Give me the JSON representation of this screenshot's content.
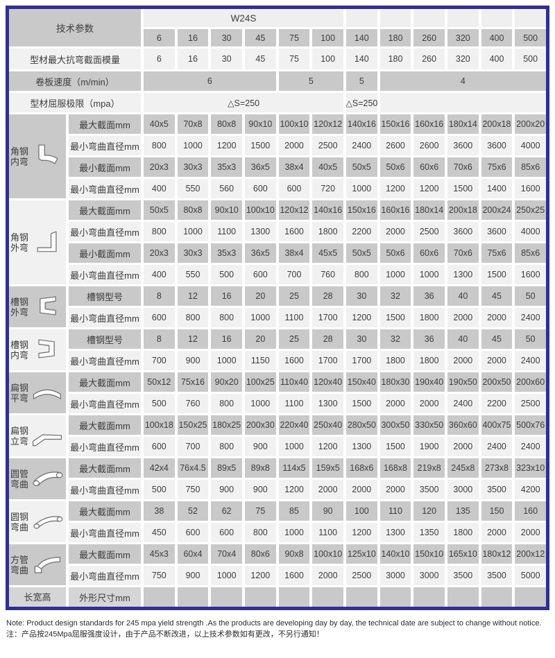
{
  "colors": {
    "frame_border": "#2f2f94",
    "cell_gray": "#c9c9c9",
    "row_light": "#f1f1f1",
    "header_light": "#efefef",
    "label_mid": "#d5d5d5"
  },
  "header": {
    "param_label": "技术参数",
    "model": "W24S",
    "columns": [
      "6",
      "16",
      "30",
      "45",
      "75",
      "100",
      "140",
      "180",
      "260",
      "320",
      "400",
      "500"
    ]
  },
  "spec_rows": [
    {
      "label": "型材最大抗弯截面模量",
      "shade": "light",
      "cells": [
        {
          "text": "6",
          "span": 1
        },
        {
          "text": "16",
          "span": 1
        },
        {
          "text": "30",
          "span": 1
        },
        {
          "text": "45",
          "span": 1
        },
        {
          "text": "75",
          "span": 1
        },
        {
          "text": "100",
          "span": 1
        },
        {
          "text": "140",
          "span": 1
        },
        {
          "text": "180",
          "span": 1
        },
        {
          "text": "260",
          "span": 1
        },
        {
          "text": "320",
          "span": 1
        },
        {
          "text": "400",
          "span": 1
        },
        {
          "text": "500",
          "span": 1
        }
      ]
    },
    {
      "label": "卷板速度（m/min）",
      "shade": "gray",
      "cells": [
        {
          "text": "6",
          "span": 4
        },
        {
          "text": "5",
          "span": 2
        },
        {
          "text": "5",
          "span": 1
        },
        {
          "text": "4",
          "span": 5
        }
      ]
    },
    {
      "label": "型材屈服极限（mpa）",
      "shade": "light",
      "cells": [
        {
          "text": "△S=250",
          "span": 6
        },
        {
          "text": "△S=250",
          "span": 1
        },
        {
          "text": "",
          "span": 5
        }
      ]
    }
  ],
  "groups": [
    {
      "name": "角钢\n内弯",
      "icon": "angle-steel-inner-bend",
      "rows": [
        {
          "label": "最大截面mm",
          "values": [
            "40x5",
            "70x8",
            "80x8",
            "90x10",
            "100x10",
            "120x12",
            "140x16",
            "150x16",
            "160x16",
            "180x14",
            "200x18",
            "200x20"
          ]
        },
        {
          "label": "最小弯曲直径mm",
          "values": [
            "800",
            "1000",
            "1200",
            "1500",
            "2000",
            "2500",
            "2400",
            "2600",
            "2600",
            "3600",
            "3600",
            "4000"
          ]
        },
        {
          "label": "最小截面mm",
          "values": [
            "20x3",
            "30x3",
            "35x3",
            "36x5",
            "38x4",
            "40x5",
            "50x5",
            "50x6",
            "60x6",
            "70x6",
            "75x6",
            "85x6"
          ]
        },
        {
          "label": "最小弯曲直径mm",
          "values": [
            "400",
            "550",
            "560",
            "600",
            "600",
            "720",
            "1000",
            "1200",
            "1200",
            "1500",
            "1400",
            "1600"
          ]
        }
      ]
    },
    {
      "name": "角钢\n外弯",
      "icon": "angle-steel-outer-bend",
      "rows": [
        {
          "label": "最大截面mm",
          "values": [
            "50x5",
            "80x8",
            "90x10",
            "100x10",
            "120x12",
            "140x16",
            "150x16",
            "160x16",
            "180x14",
            "200x18",
            "200x24",
            "250x25"
          ]
        },
        {
          "label": "最小弯曲直径mm",
          "values": [
            "800",
            "1000",
            "1100",
            "1300",
            "1600",
            "1800",
            "2200",
            "2000",
            "2500",
            "3600",
            "3600",
            "4000"
          ]
        },
        {
          "label": "最小截面mm",
          "values": [
            "20x3",
            "30x3",
            "35x3",
            "36x5",
            "38x4",
            "45x5",
            "50x5",
            "50x6",
            "60x6",
            "70x6",
            "75x6",
            "85x6"
          ]
        },
        {
          "label": "最小弯曲直径mm",
          "values": [
            "400",
            "550",
            "500",
            "600",
            "700",
            "760",
            "800",
            "1000",
            "1000",
            "1300",
            "1500",
            "1600"
          ]
        }
      ]
    },
    {
      "name": "槽钢\n外弯",
      "icon": "channel-steel-outer-bend",
      "rows": [
        {
          "label": "槽钢型号",
          "values": [
            "8",
            "12",
            "16",
            "20",
            "25",
            "28",
            "30",
            "32",
            "36",
            "40",
            "45",
            "50"
          ]
        },
        {
          "label": "最小弯曲直径mm",
          "values": [
            "600",
            "800",
            "800",
            "1000",
            "1100",
            "1700",
            "1200",
            "1500",
            "1800",
            "2000",
            "2000",
            "2400"
          ]
        }
      ]
    },
    {
      "name": "槽钢\n内弯",
      "icon": "channel-steel-inner-bend",
      "rows": [
        {
          "label": "槽钢型号",
          "values": [
            "8",
            "12",
            "16",
            "20",
            "25",
            "28",
            "30",
            "32",
            "36",
            "40",
            "45",
            "50"
          ]
        },
        {
          "label": "最小弯曲直径mm",
          "values": [
            "700",
            "900",
            "1000",
            "1150",
            "1600",
            "1700",
            "1700",
            "1800",
            "1800",
            "2000",
            "2000",
            "2400"
          ]
        }
      ]
    },
    {
      "name": "扁钢\n平弯",
      "icon": "flat-steel-flatwise-bend",
      "rows": [
        {
          "label": "最大截面mm",
          "values": [
            "50x12",
            "75x16",
            "90x20",
            "100x25",
            "110x40",
            "120x40",
            "150x40",
            "180x30",
            "190x40",
            "190x50",
            "200x50",
            "200x60"
          ]
        },
        {
          "label": "最小弯曲直径mm",
          "values": [
            "500",
            "760",
            "800",
            "1000",
            "1100",
            "1300",
            "1500",
            "2000",
            "2000",
            "2400",
            "2200",
            "2500"
          ]
        }
      ]
    },
    {
      "name": "扁钢\n立弯",
      "icon": "flat-steel-edgewise-bend",
      "rows": [
        {
          "label": "最大截面mm",
          "values": [
            "100x18",
            "150x25",
            "180x25",
            "200x30",
            "220x40",
            "250x40",
            "280x50",
            "300x50",
            "330x50",
            "360x60",
            "400x75",
            "500x76"
          ]
        },
        {
          "label": "最小弯曲直径mm",
          "values": [
            "600",
            "700",
            "800",
            "900",
            "1000",
            "1200",
            "1300",
            "1500",
            "1900",
            "2000",
            "2400",
            "2400"
          ]
        }
      ]
    },
    {
      "name": "圆管\n弯曲",
      "icon": "round-pipe-bend",
      "rows": [
        {
          "label": "最大截面mm",
          "values": [
            "42x4",
            "76x4.5",
            "89x5",
            "89x8",
            "114x5",
            "159x5",
            "168x6",
            "168x8",
            "219x8",
            "245x8",
            "273x8",
            "323x10"
          ]
        },
        {
          "label": "最小弯曲直径mm",
          "values": [
            "500",
            "750",
            "900",
            "900",
            "1200",
            "2000",
            "2000",
            "2000",
            "3500",
            "3000",
            "3500",
            "4200"
          ]
        }
      ]
    },
    {
      "name": "圆钢\n弯曲",
      "icon": "round-bar-bend",
      "rows": [
        {
          "label": "最大截面mm",
          "values": [
            "38",
            "52",
            "62",
            "75",
            "85",
            "90",
            "100",
            "110",
            "120",
            "135",
            "150",
            "160"
          ]
        },
        {
          "label": "最小弯曲直径mm",
          "values": [
            "450",
            "600",
            "600",
            "800",
            "1000",
            "1100",
            "1200",
            "1300",
            "1350",
            "1800",
            "2000",
            "2000"
          ]
        }
      ]
    },
    {
      "name": "方管\n弯曲",
      "icon": "square-pipe-bend",
      "rows": [
        {
          "label": "最大截面mm",
          "values": [
            "45x3",
            "60x4",
            "70x4",
            "80x6",
            "90x8",
            "100x10",
            "125x10",
            "140x10",
            "150x10",
            "165x10",
            "180x12",
            "200x12"
          ]
        },
        {
          "label": "最小弯曲直径mm",
          "values": [
            "750",
            "900",
            "1000",
            "1200",
            "1600",
            "2000",
            "2500",
            "3000",
            "3000",
            "3500",
            "3500",
            "5000"
          ]
        }
      ]
    },
    {
      "name": "长宽高",
      "icon": null,
      "rows": [
        {
          "label": "外形尺寸mm",
          "values": [
            "",
            "",
            "",
            "",
            "",
            "",
            "",
            "",
            "",
            "",
            "",
            ""
          ]
        }
      ]
    }
  ],
  "footer": {
    "note_en": "Note: Product design standards for 245 mpa yield strength .As the products are developing day by day, the technical date are subject to change without notice.",
    "note_cn": "注：产品按245Mpa屈服强度设计，由于产品不断改进，以上技术参数如有更改，不另行通知！"
  }
}
